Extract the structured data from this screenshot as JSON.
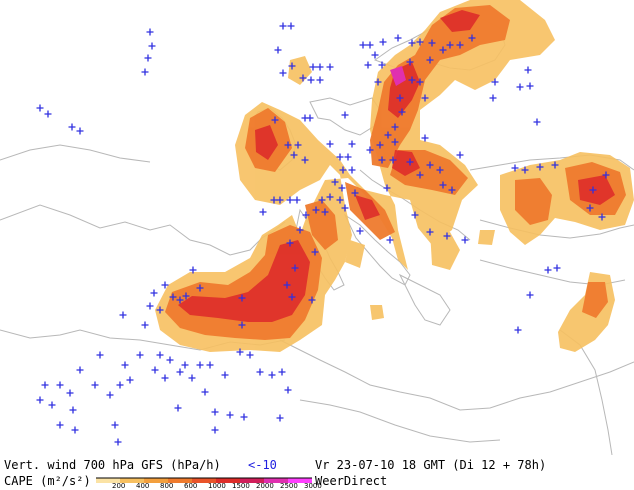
{
  "footer": {
    "line1_left": "Vert. wind 700 hPa GFS (hPa/h)",
    "line1_mid": "<-10",
    "line1_right": "Vr 23-07-10 18 GMT (Di 12 + 78h)",
    "line2_label": "CAPE (m²/s²)",
    "brand": "WeerDirect"
  },
  "legend": {
    "ticks": [
      "200",
      "400",
      "800",
      "600",
      "1000",
      "1500",
      "2000",
      "2500",
      "3000"
    ],
    "colors": [
      "#fbe3a5",
      "#f7c060",
      "#f3a03e",
      "#ef7b2e",
      "#e9542a",
      "#de2e2a",
      "#d01f5a",
      "#e030b0",
      "#ff40ff"
    ]
  },
  "colors": {
    "marker": "#3030e0",
    "coast": "#b8b8b8",
    "cape_low": "#f7c060",
    "cape_mid": "#ef7b2e",
    "cape_high": "#de2e2a"
  },
  "markers": [
    [
      283,
      26
    ],
    [
      291,
      26
    ],
    [
      150,
      32
    ],
    [
      152,
      46
    ],
    [
      148,
      58
    ],
    [
      145,
      72
    ],
    [
      40,
      108
    ],
    [
      48,
      114
    ],
    [
      72,
      127
    ],
    [
      80,
      131
    ],
    [
      278,
      50
    ],
    [
      292,
      66
    ],
    [
      303,
      78
    ],
    [
      311,
      80
    ],
    [
      320,
      80
    ],
    [
      330,
      67
    ],
    [
      320,
      67
    ],
    [
      313,
      67
    ],
    [
      283,
      73
    ],
    [
      275,
      120
    ],
    [
      305,
      118
    ],
    [
      310,
      118
    ],
    [
      288,
      145
    ],
    [
      298,
      145
    ],
    [
      294,
      155
    ],
    [
      305,
      160
    ],
    [
      330,
      144
    ],
    [
      352,
      144
    ],
    [
      340,
      157
    ],
    [
      348,
      157
    ],
    [
      343,
      170
    ],
    [
      352,
      170
    ],
    [
      335,
      182
    ],
    [
      342,
      188
    ],
    [
      340,
      200
    ],
    [
      330,
      197
    ],
    [
      322,
      200
    ],
    [
      316,
      210
    ],
    [
      325,
      212
    ],
    [
      306,
      215
    ],
    [
      297,
      200
    ],
    [
      290,
      200
    ],
    [
      280,
      200
    ],
    [
      274,
      200
    ],
    [
      263,
      212
    ],
    [
      300,
      230
    ],
    [
      290,
      243
    ],
    [
      315,
      252
    ],
    [
      295,
      268
    ],
    [
      287,
      285
    ],
    [
      292,
      297
    ],
    [
      312,
      300
    ],
    [
      242,
      298
    ],
    [
      242,
      325
    ],
    [
      200,
      288
    ],
    [
      193,
      270
    ],
    [
      186,
      296
    ],
    [
      180,
      300
    ],
    [
      173,
      297
    ],
    [
      165,
      285
    ],
    [
      154,
      293
    ],
    [
      150,
      306
    ],
    [
      160,
      310
    ],
    [
      123,
      315
    ],
    [
      145,
      325
    ],
    [
      160,
      355
    ],
    [
      140,
      355
    ],
    [
      125,
      365
    ],
    [
      100,
      355
    ],
    [
      130,
      380
    ],
    [
      120,
      385
    ],
    [
      110,
      395
    ],
    [
      95,
      385
    ],
    [
      80,
      370
    ],
    [
      60,
      385
    ],
    [
      45,
      385
    ],
    [
      40,
      400
    ],
    [
      52,
      405
    ],
    [
      70,
      393
    ],
    [
      73,
      410
    ],
    [
      60,
      425
    ],
    [
      75,
      430
    ],
    [
      115,
      425
    ],
    [
      118,
      442
    ],
    [
      215,
      412
    ],
    [
      215,
      430
    ],
    [
      230,
      415
    ],
    [
      244,
      417
    ],
    [
      178,
      408
    ],
    [
      205,
      392
    ],
    [
      225,
      375
    ],
    [
      180,
      372
    ],
    [
      192,
      378
    ],
    [
      165,
      378
    ],
    [
      155,
      370
    ],
    [
      170,
      360
    ],
    [
      185,
      365
    ],
    [
      200,
      365
    ],
    [
      210,
      365
    ],
    [
      240,
      352
    ],
    [
      250,
      355
    ],
    [
      260,
      372
    ],
    [
      272,
      375
    ],
    [
      282,
      372
    ],
    [
      288,
      390
    ],
    [
      280,
      418
    ],
    [
      345,
      115
    ],
    [
      378,
      82
    ],
    [
      382,
      65
    ],
    [
      375,
      55
    ],
    [
      370,
      45
    ],
    [
      363,
      45
    ],
    [
      368,
      65
    ],
    [
      383,
      42
    ],
    [
      398,
      38
    ],
    [
      412,
      43
    ],
    [
      420,
      42
    ],
    [
      432,
      43
    ],
    [
      443,
      50
    ],
    [
      450,
      45
    ],
    [
      460,
      45
    ],
    [
      472,
      38
    ],
    [
      430,
      60
    ],
    [
      410,
      62
    ],
    [
      412,
      80
    ],
    [
      420,
      82
    ],
    [
      425,
      98
    ],
    [
      400,
      98
    ],
    [
      402,
      112
    ],
    [
      395,
      127
    ],
    [
      388,
      135
    ],
    [
      395,
      142
    ],
    [
      380,
      145
    ],
    [
      370,
      150
    ],
    [
      382,
      160
    ],
    [
      393,
      160
    ],
    [
      410,
      162
    ],
    [
      430,
      165
    ],
    [
      440,
      170
    ],
    [
      443,
      185
    ],
    [
      420,
      175
    ],
    [
      452,
      190
    ],
    [
      460,
      155
    ],
    [
      465,
      240
    ],
    [
      447,
      236
    ],
    [
      430,
      232
    ],
    [
      495,
      82
    ],
    [
      493,
      98
    ],
    [
      528,
      70
    ],
    [
      520,
      87
    ],
    [
      530,
      86
    ],
    [
      537,
      122
    ],
    [
      515,
      168
    ],
    [
      525,
      170
    ],
    [
      540,
      167
    ],
    [
      555,
      165
    ],
    [
      593,
      190
    ],
    [
      606,
      175
    ],
    [
      590,
      208
    ],
    [
      602,
      217
    ],
    [
      548,
      270
    ],
    [
      557,
      268
    ],
    [
      530,
      295
    ],
    [
      518,
      330
    ],
    [
      345,
      208
    ],
    [
      355,
      193
    ],
    [
      387,
      188
    ],
    [
      360,
      231
    ],
    [
      425,
      138
    ],
    [
      415,
      215
    ],
    [
      390,
      240
    ]
  ]
}
